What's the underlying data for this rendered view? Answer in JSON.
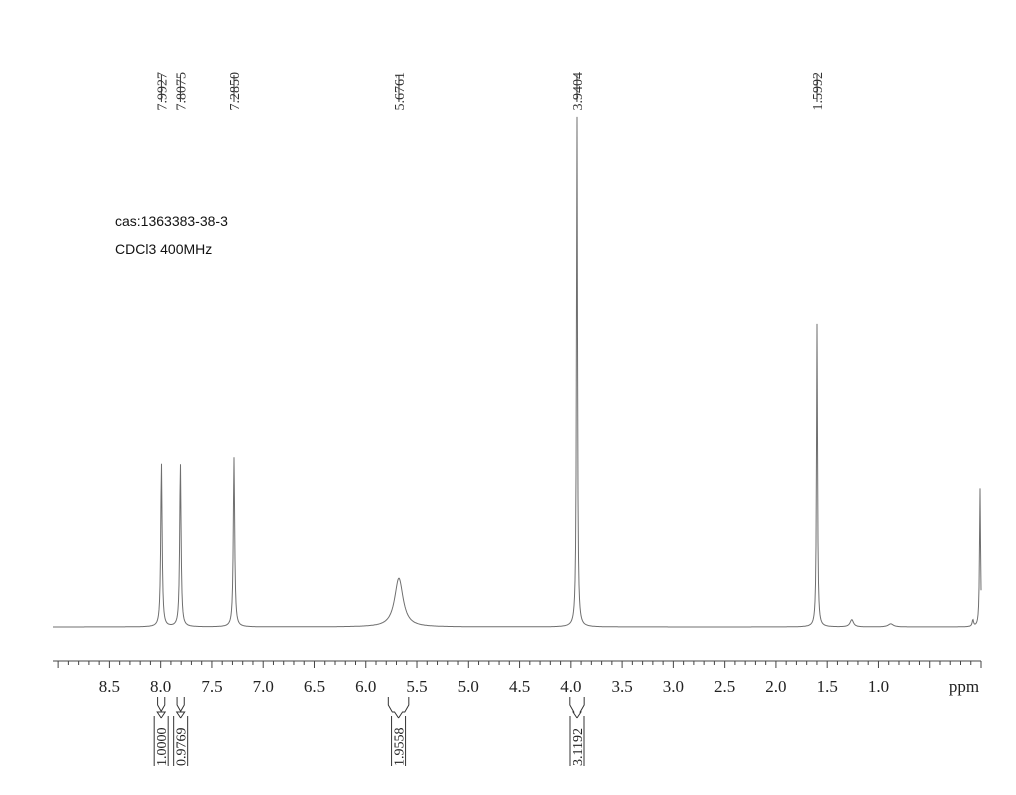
{
  "sample": {
    "cas": "cas:1363383-38-3",
    "conditions": "CDCl3 400MHz"
  },
  "chart_data": {
    "type": "line",
    "title": "",
    "xlabel": "ppm",
    "ylabel": "",
    "x_reversed": true,
    "xlim": [
      9.05,
      0.0
    ],
    "x_ticks": [
      "8.5",
      "8.0",
      "7.5",
      "7.0",
      "6.5",
      "6.0",
      "5.5",
      "5.0",
      "4.5",
      "4.0",
      "3.5",
      "3.0",
      "2.5",
      "2.0",
      "1.5",
      "1.0"
    ],
    "x_tick_values": [
      8.5,
      8.0,
      7.5,
      7.0,
      6.5,
      6.0,
      5.5,
      5.0,
      4.5,
      4.0,
      3.5,
      3.0,
      2.5,
      2.0,
      1.5,
      1.0
    ],
    "grid": false,
    "peak_labels": [
      "7.9927",
      "7.8075",
      "7.2850",
      "5.6761",
      "3.9404",
      "1.5992"
    ],
    "peaks": [
      {
        "ppm": 7.9927,
        "height": 0.32,
        "width": 0.008
      },
      {
        "ppm": 7.8075,
        "height": 0.32,
        "width": 0.008
      },
      {
        "ppm": 7.285,
        "height": 0.33,
        "width": 0.008
      },
      {
        "ppm": 5.6761,
        "height": 0.095,
        "width": 0.05
      },
      {
        "ppm": 3.9404,
        "height": 1.0,
        "width": 0.006
      },
      {
        "ppm": 1.5992,
        "height": 0.59,
        "width": 0.006
      },
      {
        "ppm": 1.26,
        "height": 0.014,
        "width": 0.02
      },
      {
        "ppm": 0.88,
        "height": 0.006,
        "width": 0.03
      },
      {
        "ppm": 0.08,
        "height": 0.013,
        "width": 0.008
      },
      {
        "ppm": 0.01,
        "height": 0.27,
        "width": 0.006
      }
    ],
    "integrals": [
      {
        "from": 8.03,
        "to": 7.96,
        "value": "1.0000"
      },
      {
        "from": 7.84,
        "to": 7.77,
        "value": "0.9769"
      },
      {
        "from": 5.78,
        "to": 5.58,
        "value": "1.9558"
      },
      {
        "from": 4.01,
        "to": 3.87,
        "value": "3.1192"
      }
    ]
  }
}
